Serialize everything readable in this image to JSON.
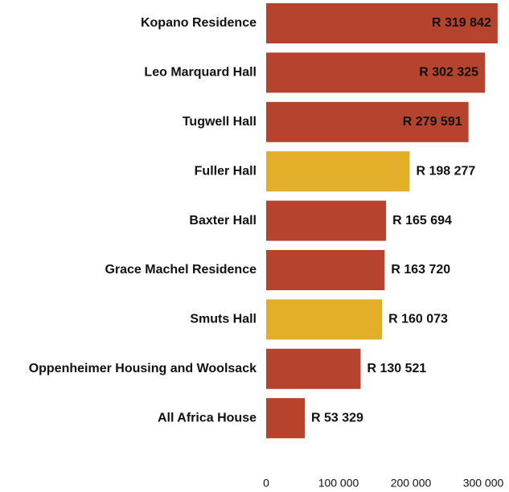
{
  "chart_data": {
    "type": "barh",
    "categories": [
      "Kopano Residence",
      "Leo Marquard Hall",
      "Tugwell Hall",
      "Fuller Hall",
      "Baxter Hall",
      "Grace Machel Residence",
      "Smuts Hall",
      "Oppenheimer Housing and Woolsack",
      "All Africa House"
    ],
    "values": [
      319842,
      302325,
      279591,
      198277,
      165694,
      163720,
      160073,
      130521,
      53329
    ],
    "value_labels": [
      "R 319 842",
      "R 302 325",
      "R 279 591",
      "R 198 277",
      "R 165 694",
      "R 163 720",
      "R 160 073",
      "R 130 521",
      "R 53 329"
    ],
    "colors": [
      "#b5432e",
      "#b5432e",
      "#b5432e",
      "#e3ae2a",
      "#b5432e",
      "#b5432e",
      "#e3ae2a",
      "#b5432e",
      "#b5432e"
    ],
    "xlim": [
      0,
      335000
    ],
    "xticks": [
      0,
      {
        "value": 100000,
        "label": "100 000"
      },
      {
        "value": 200000,
        "label": "200 000"
      },
      {
        "value": 300000,
        "label": "300 000"
      }
    ]
  }
}
